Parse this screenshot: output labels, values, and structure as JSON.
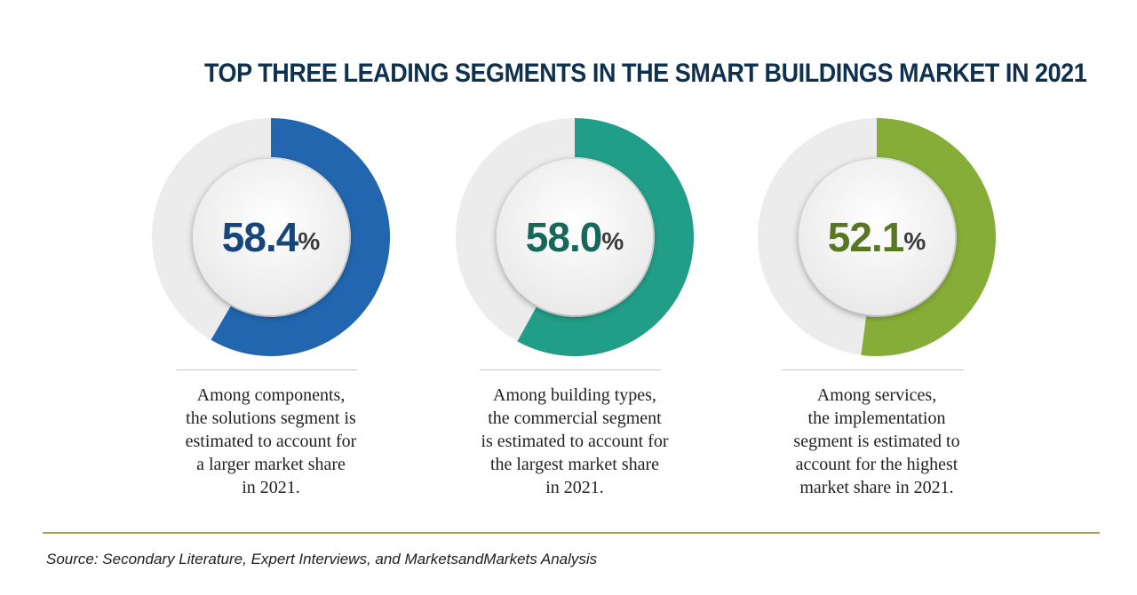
{
  "chart_data": {
    "type": "pie",
    "title": "TOP THREE LEADING SEGMENTS IN THE SMART BUILDINGS MARKET IN 2021",
    "charts": [
      {
        "value": 58.4,
        "value_label": "58.4",
        "unit": "%",
        "color": "#2166ae",
        "text_color": "#17467a",
        "caption": "Among components,\nthe solutions segment is\nestimated to account for\na larger market share\nin 2021."
      },
      {
        "value": 58.0,
        "value_label": "58.0",
        "unit": "%",
        "color": "#219e87",
        "text_color": "#16685a",
        "caption": "Among building types,\nthe commercial segment\nis estimated to account for\nthe largest market share\nin 2021."
      },
      {
        "value": 52.1,
        "value_label": "52.1",
        "unit": "%",
        "color": "#86ad38",
        "text_color": "#587723",
        "caption": "Among services,\nthe implementation\nsegment is estimated to\naccount for the highest\nmarket share in 2021."
      }
    ]
  },
  "source": "Source: Secondary Literature, Expert Interviews, and MarketsandMarkets Analysis"
}
